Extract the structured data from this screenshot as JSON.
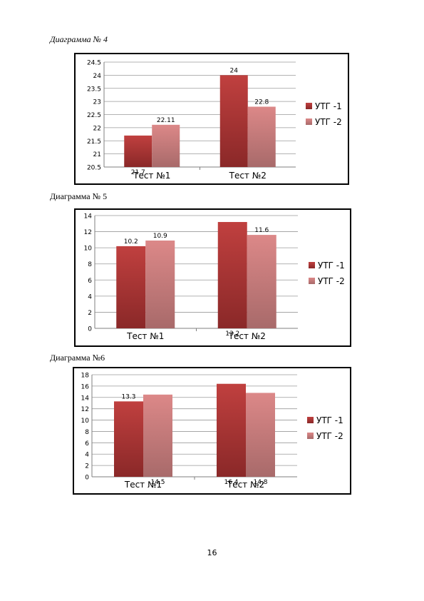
{
  "captions": [
    "Диаграмма № 4",
    "Диаграмма № 5",
    "Диаграмма №6"
  ],
  "page_number": "16",
  "colors": {
    "series1_top": "#c0403f",
    "series1_bottom": "#8a2828",
    "series2_top": "#dc8888",
    "series2_bottom": "#a86a6a",
    "grid": "#9a9a9a",
    "axis": "#7f7f7f"
  },
  "chart_data": [
    {
      "type": "bar",
      "categories": [
        "Тест №1",
        "Тест №2"
      ],
      "series": [
        {
          "name": "УТГ -1",
          "values": [
            21.7,
            24
          ]
        },
        {
          "name": "УТГ -2",
          "values": [
            22.11,
            22.8
          ]
        }
      ],
      "data_labels": [
        [
          "21.7",
          "24"
        ],
        [
          "22.11",
          "22.8"
        ]
      ],
      "yticks": [
        "20.5",
        "21",
        "21.5",
        "22",
        "22.5",
        "23",
        "23.5",
        "24",
        "24.5"
      ],
      "ylim": [
        20.5,
        24.5
      ],
      "legend": "right",
      "grid": true
    },
    {
      "type": "bar",
      "categories": [
        "Тест №1",
        "Тест №2"
      ],
      "series": [
        {
          "name": "УТГ -1",
          "values": [
            10.2,
            13.2
          ]
        },
        {
          "name": "УТГ -2",
          "values": [
            10.9,
            11.6
          ]
        }
      ],
      "data_labels": [
        [
          "10.2",
          "13.2"
        ],
        [
          "10.9",
          "11.6"
        ]
      ],
      "yticks": [
        "0",
        "2",
        "4",
        "6",
        "8",
        "10",
        "12",
        "14"
      ],
      "ylim": [
        0,
        14
      ],
      "legend": "right",
      "grid": true
    },
    {
      "type": "bar",
      "categories": [
        "Тест №1",
        "Тест №2"
      ],
      "series": [
        {
          "name": "УТГ -1",
          "values": [
            13.3,
            16.4
          ]
        },
        {
          "name": "УТГ -2",
          "values": [
            14.5,
            14.8
          ]
        }
      ],
      "data_labels": [
        [
          "13.3",
          "16.4"
        ],
        [
          "14.5",
          "14.8"
        ]
      ],
      "yticks": [
        "0",
        "2",
        "4",
        "6",
        "8",
        "10",
        "12",
        "14",
        "16",
        "18"
      ],
      "ylim": [
        0,
        18
      ],
      "legend": "right",
      "grid": true
    }
  ]
}
